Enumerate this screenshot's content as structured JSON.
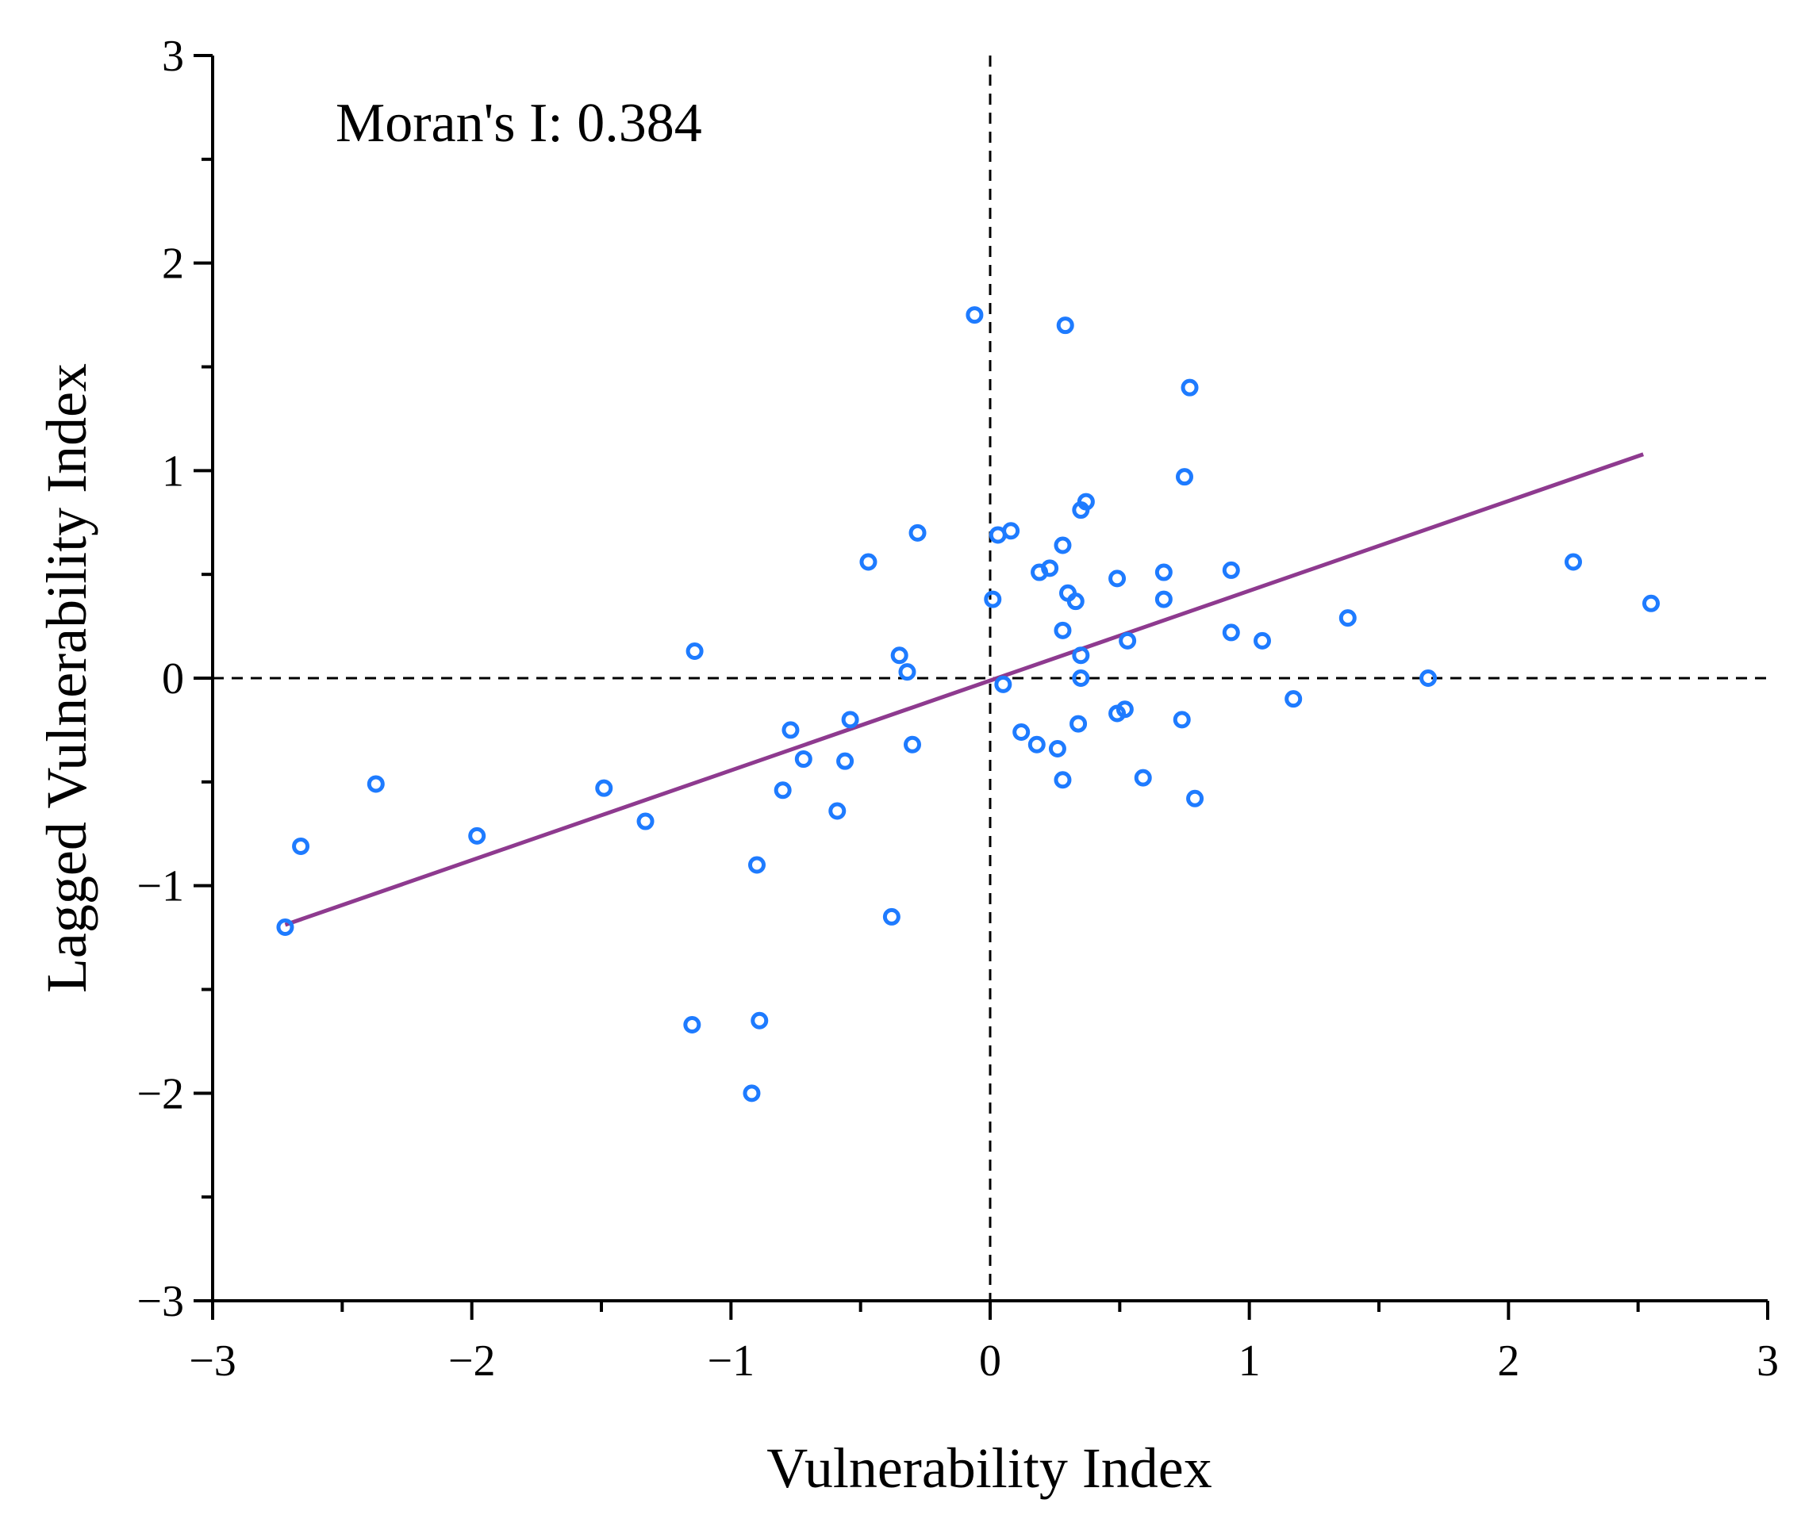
{
  "chart_data": {
    "type": "scatter",
    "title": "",
    "xlabel": "Vulnerability Index",
    "ylabel": "Lagged Vulnerability Index",
    "xlim": [
      -3,
      3
    ],
    "ylim": [
      -3,
      3
    ],
    "x_ticks": [
      -3,
      -2,
      -1,
      0,
      1,
      2,
      3
    ],
    "y_ticks": [
      -3,
      -2,
      -1,
      0,
      1,
      2,
      3
    ],
    "x_tick_labels": [
      "−3",
      "−2",
      "−1",
      "0",
      "1",
      "2",
      "3"
    ],
    "y_tick_labels": [
      "−3",
      "−2",
      "−1",
      "0",
      "1",
      "2",
      "3"
    ],
    "grid": false,
    "reference_lines": {
      "x": 0,
      "y": 0,
      "style": "dashed"
    },
    "annotation": "Moran's I: 0.384",
    "marker_color": "#1e7bff",
    "line_color": "#8e3a8f",
    "points": [
      [
        -2.72,
        -1.2
      ],
      [
        -2.66,
        -0.81
      ],
      [
        -2.37,
        -0.51
      ],
      [
        -1.98,
        -0.76
      ],
      [
        -1.49,
        -0.53
      ],
      [
        -1.33,
        -0.69
      ],
      [
        -1.14,
        0.13
      ],
      [
        -1.15,
        -1.67
      ],
      [
        -0.92,
        -2.0
      ],
      [
        -0.9,
        -0.9
      ],
      [
        -0.89,
        -1.65
      ],
      [
        -0.8,
        -0.54
      ],
      [
        -0.77,
        -0.25
      ],
      [
        -0.72,
        -0.39
      ],
      [
        -0.59,
        -0.64
      ],
      [
        -0.56,
        -0.4
      ],
      [
        -0.54,
        -0.2
      ],
      [
        -0.47,
        0.56
      ],
      [
        -0.38,
        -1.15
      ],
      [
        -0.35,
        0.11
      ],
      [
        -0.32,
        0.03
      ],
      [
        -0.3,
        -0.32
      ],
      [
        -0.28,
        0.7
      ],
      [
        -0.06,
        1.75
      ],
      [
        0.01,
        0.38
      ],
      [
        0.03,
        0.69
      ],
      [
        0.05,
        -0.03
      ],
      [
        0.08,
        0.71
      ],
      [
        0.12,
        -0.26
      ],
      [
        0.18,
        -0.32
      ],
      [
        0.19,
        0.51
      ],
      [
        0.23,
        0.53
      ],
      [
        0.26,
        -0.34
      ],
      [
        0.28,
        0.64
      ],
      [
        0.28,
        0.23
      ],
      [
        0.28,
        -0.49
      ],
      [
        0.29,
        1.7
      ],
      [
        0.3,
        0.41
      ],
      [
        0.33,
        0.37
      ],
      [
        0.34,
        -0.22
      ],
      [
        0.35,
        0.81
      ],
      [
        0.35,
        0.11
      ],
      [
        0.35,
        0.0
      ],
      [
        0.37,
        0.85
      ],
      [
        0.49,
        0.48
      ],
      [
        0.49,
        -0.17
      ],
      [
        0.52,
        -0.15
      ],
      [
        0.53,
        0.18
      ],
      [
        0.59,
        -0.48
      ],
      [
        0.67,
        0.51
      ],
      [
        0.67,
        0.38
      ],
      [
        0.74,
        -0.2
      ],
      [
        0.75,
        0.97
      ],
      [
        0.77,
        1.4
      ],
      [
        0.79,
        -0.58
      ],
      [
        0.93,
        0.52
      ],
      [
        0.93,
        0.22
      ],
      [
        1.05,
        0.18
      ],
      [
        1.17,
        -0.1
      ],
      [
        1.38,
        0.29
      ],
      [
        1.69,
        0.0
      ],
      [
        2.25,
        0.56
      ],
      [
        2.55,
        0.36
      ]
    ],
    "fit_line": {
      "slope": 0.4327,
      "intercept": -0.0116,
      "x_range": [
        -2.72,
        2.52
      ]
    }
  }
}
